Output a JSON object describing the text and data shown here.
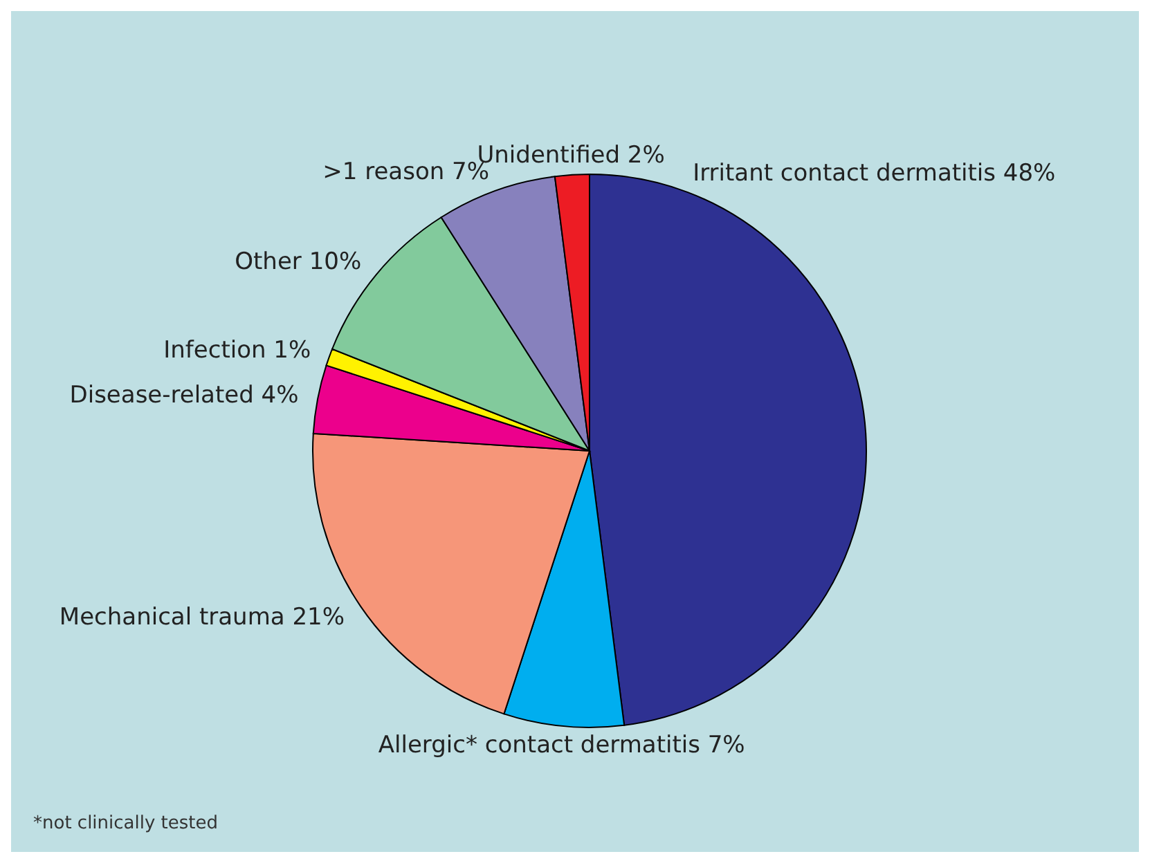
{
  "chart_data": {
    "type": "pie",
    "categories": [
      "Irritant contact dermatitis",
      "Allergic* contact dermatitis",
      "Mechanical trauma",
      "Disease-related",
      "Infection",
      "Other",
      ">1 reason",
      "Unidentified"
    ],
    "values": [
      48,
      7,
      21,
      4,
      1,
      10,
      7,
      2
    ],
    "value_labels": [
      "48%",
      "7%",
      "21%",
      "4%",
      "1%",
      "10%",
      "7%",
      "2%"
    ],
    "colors": [
      "#2e3192",
      "#00aeef",
      "#f69679",
      "#ec008c",
      "#fff200",
      "#82ca9c",
      "#8781bd",
      "#ed1c24"
    ],
    "annotations": [
      "*not clinically tested"
    ]
  }
}
